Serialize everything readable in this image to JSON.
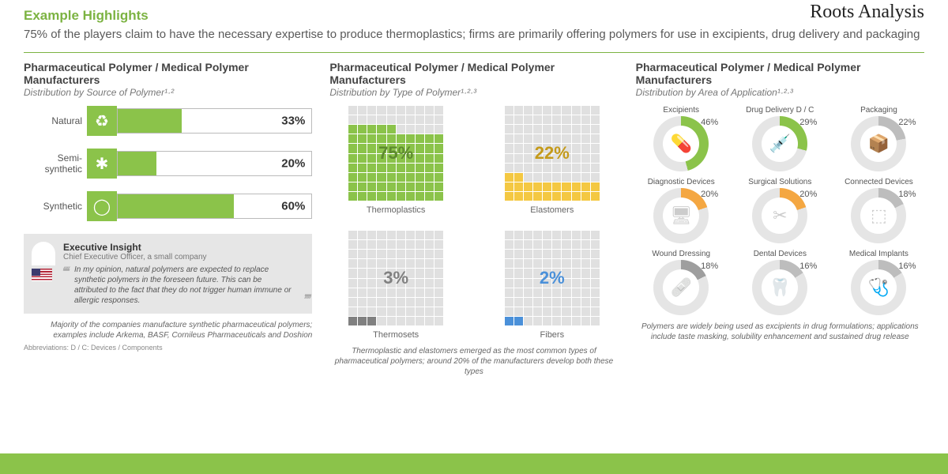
{
  "brand": "Roots Analysis",
  "header": {
    "title": "Example Highlights",
    "subtitle": "75% of the players claim to have the necessary expertise to produce thermoplastics; firms are primarily offering polymers for use in excipients, drug delivery and packaging"
  },
  "accent_color": "#8bc34a",
  "col1": {
    "title": "Pharmaceutical Polymer / Medical Polymer Manufacturers",
    "subtitle": "Distribution by Source of Polymer¹·²",
    "bars": [
      {
        "label": "Natural",
        "value": 33,
        "icon": "♻"
      },
      {
        "label": "Semi-synthetic",
        "value": 20,
        "icon": "✱"
      },
      {
        "label": "Synthetic",
        "value": 60,
        "icon": "◯"
      }
    ],
    "insight": {
      "heading": "Executive Insight",
      "role": "Chief Executive Officer, a small company",
      "quote": "In my opinion, natural polymers are expected to replace synthetic polymers in the foreseen future. This can be attributed to the fact that they do not trigger human immune or allergic responses."
    },
    "footnote": "Majority of the companies manufacture synthetic pharmaceutical polymers; examples include Arkema, BASF, Cornileus Pharmaceuticals and Doshion",
    "abbrev": "Abbreviations: D / C: Devices / Components"
  },
  "col2": {
    "title": "Pharmaceutical Polymer / Medical Polymer Manufacturers",
    "subtitle": "Distribution by Type of Polymer¹·²·³",
    "waffles": [
      {
        "label": "Thermoplastics",
        "value": 75,
        "color": "#8bc34a",
        "text": "#5d8a2f"
      },
      {
        "label": "Elastomers",
        "value": 22,
        "color": "#f4c842",
        "text": "#c49a1a"
      },
      {
        "label": "Thermosets",
        "value": 3,
        "color": "#808080",
        "text": "#808080"
      },
      {
        "label": "Fibers",
        "value": 2,
        "color": "#4a90d9",
        "text": "#4a90d9"
      }
    ],
    "footnote": "Thermoplastic and elastomers emerged as the most common types of pharmaceutical polymers; around 20% of the manufacturers develop both these types"
  },
  "col3": {
    "title": "Pharmaceutical Polymer / Medical Polymer Manufacturers",
    "subtitle": "Distribution by Area of Application¹·²·³",
    "donuts": [
      {
        "label": "Excipients",
        "value": 46,
        "color": "#8bc34a",
        "icon": "💊"
      },
      {
        "label": "Drug Delivery D / C",
        "value": 29,
        "color": "#8bc34a",
        "icon": "💉"
      },
      {
        "label": "Packaging",
        "value": 22,
        "color": "#bdbdbd",
        "icon": "📦"
      },
      {
        "label": "Diagnostic Devices",
        "value": 20,
        "color": "#f4a742",
        "icon": "🖥"
      },
      {
        "label": "Surgical Solutions",
        "value": 20,
        "color": "#f4a742",
        "icon": "✂"
      },
      {
        "label": "Connected Devices",
        "value": 18,
        "color": "#bdbdbd",
        "icon": "⬚"
      },
      {
        "label": "Wound Dressing",
        "value": 18,
        "color": "#9e9e9e",
        "icon": "🩹"
      },
      {
        "label": "Dental Devices",
        "value": 16,
        "color": "#bdbdbd",
        "icon": "🦷"
      },
      {
        "label": "Medical Implants",
        "value": 16,
        "color": "#bdbdbd",
        "icon": "🩺"
      }
    ],
    "track_color": "#e5e5e5",
    "footnote": "Polymers are widely being used as excipients in drug formulations; applications include taste masking, solubility enhancement and sustained drug release"
  }
}
